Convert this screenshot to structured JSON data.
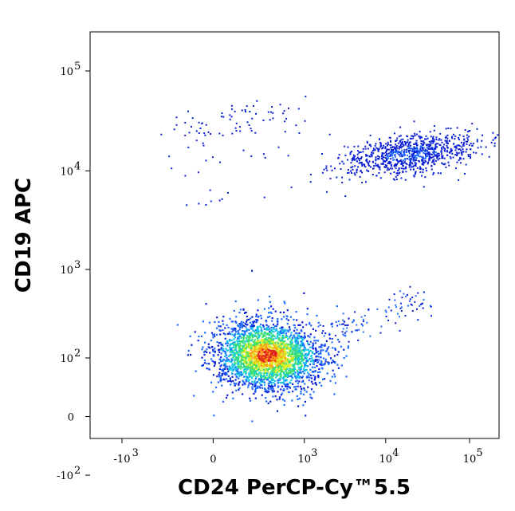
{
  "chart_data": {
    "type": "scatter",
    "plot_style": "density pseudocolor dot plot",
    "title": "",
    "xlabel": "CD24 PerCP-Cy™5.5",
    "ylabel": "CD19 APC",
    "x_scale": "biexponential",
    "y_scale": "biexponential",
    "xlim": [
      -2000,
      200000
    ],
    "ylim": [
      -250,
      250000
    ],
    "grid": false,
    "legend": "none",
    "x_ticks": [
      {
        "value": -1000,
        "base": "-10",
        "exp": "3"
      },
      {
        "value": 0,
        "base": "0",
        "exp": ""
      },
      {
        "value": 1000,
        "base": "10",
        "exp": "3"
      },
      {
        "value": 10000,
        "base": "10",
        "exp": "4"
      },
      {
        "value": 100000,
        "base": "10",
        "exp": "5"
      }
    ],
    "y_ticks": [
      {
        "value": -100,
        "base": "-10",
        "exp": "2"
      },
      {
        "value": 0,
        "base": "0",
        "exp": ""
      },
      {
        "value": 100,
        "base": "10",
        "exp": "2"
      },
      {
        "value": 1000,
        "base": "10",
        "exp": "3"
      },
      {
        "value": 10000,
        "base": "10",
        "exp": "4"
      },
      {
        "value": 100000,
        "base": "10",
        "exp": "5"
      }
    ],
    "populations": [
      {
        "name": "",
        "center_x": 300,
        "center_y": 110,
        "approx_events": 2600
      },
      {
        "name": "",
        "center_x": 20000,
        "center_y": 15000,
        "approx_events": 900
      }
    ],
    "colormap": [
      "#0a1fd4",
      "#1f6bff",
      "#13c7e6",
      "#3ee06b",
      "#d9ee22",
      "#ff9a12",
      "#e0201a"
    ]
  }
}
